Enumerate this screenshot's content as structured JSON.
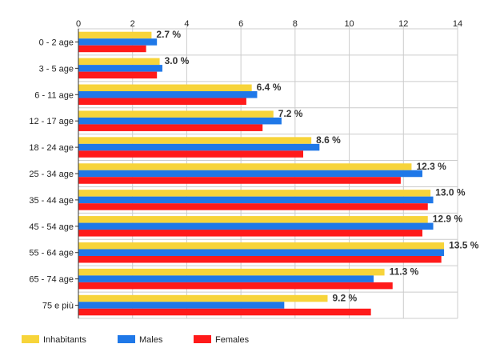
{
  "chart_data": {
    "type": "bar",
    "orientation": "horizontal",
    "title": "",
    "xlabel": "",
    "ylabel": "",
    "xlim": [
      0,
      14
    ],
    "x_ticks": [
      "0",
      "2",
      "4",
      "6",
      "8",
      "10",
      "12",
      "14"
    ],
    "x_axis_position": "top",
    "grid": true,
    "legend_position": "bottom-left",
    "categories": [
      "0 - 2 age",
      "3 - 5 age",
      "6 - 11 age",
      "12 - 17 age",
      "18 - 24 age",
      "25 - 34 age",
      "35 - 44 age",
      "45 - 54 age",
      "55 - 64 age",
      "65 - 74 age",
      "75 e più"
    ],
    "series": [
      {
        "name": "Inhabitants",
        "color": "#f7d43a",
        "values": [
          2.7,
          3.0,
          6.4,
          7.2,
          8.6,
          12.3,
          13.0,
          12.9,
          13.5,
          11.3,
          9.2
        ]
      },
      {
        "name": "Males",
        "color": "#1f78e8",
        "values": [
          2.9,
          3.1,
          6.6,
          7.5,
          8.9,
          12.7,
          13.1,
          13.1,
          13.5,
          10.9,
          7.6
        ]
      },
      {
        "name": "Females",
        "color": "#ff1a1a",
        "values": [
          2.5,
          2.9,
          6.2,
          6.8,
          8.3,
          11.9,
          12.9,
          12.7,
          13.4,
          11.6,
          10.8
        ]
      }
    ],
    "data_labels": [
      "2.7 %",
      "3.0 %",
      "6.4 %",
      "7.2 %",
      "8.6 %",
      "12.3 %",
      "13.0 %",
      "12.9 %",
      "13.5 %",
      "11.3 %",
      "9.2 %"
    ]
  }
}
